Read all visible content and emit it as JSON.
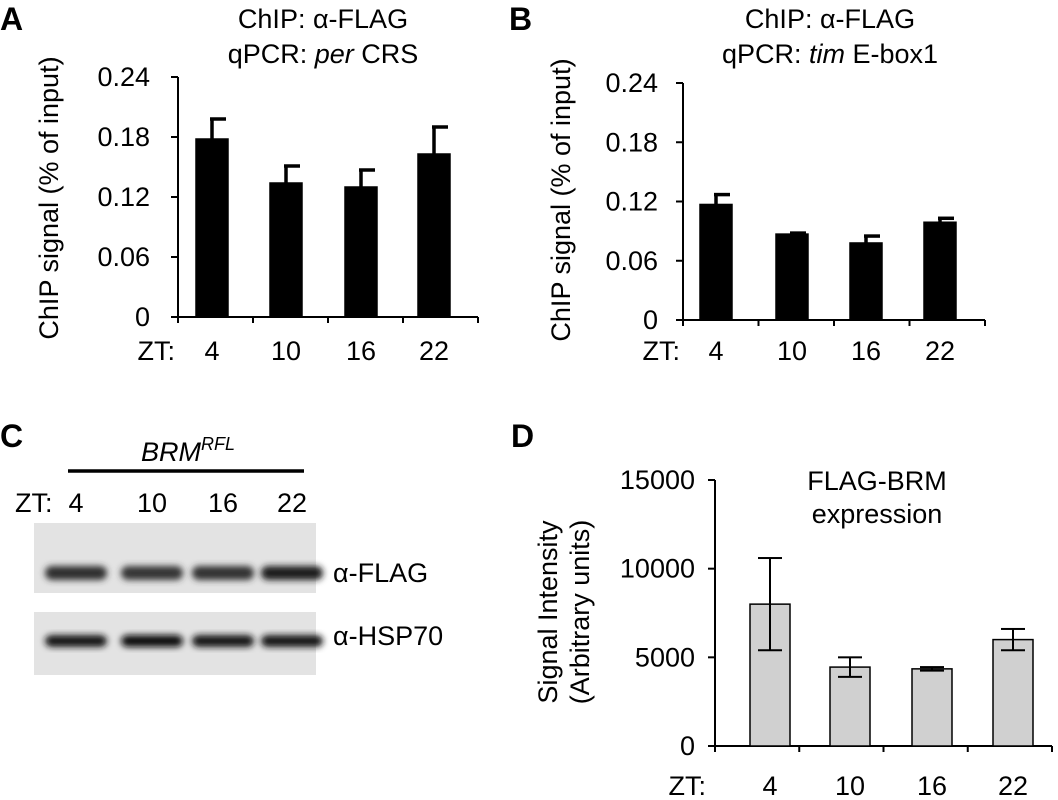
{
  "panels": [
    {
      "letter": "A",
      "title_line1": "ChIP: α-FLAG",
      "title_line2_prefix": "qPCR: ",
      "title_line2_italic": "per",
      "title_line2_suffix": " CRS"
    },
    {
      "letter": "B",
      "title_line1": "ChIP: α-FLAG",
      "title_line2_prefix": "qPCR: ",
      "title_line2_italic": "tim",
      "title_line2_suffix": " E-box1"
    },
    {
      "letter": "C",
      "genotype_base": "BRM",
      "genotype_sup": "RFL",
      "zt_prefix": "ZT:",
      "lanes": [
        "4",
        "10",
        "16",
        "22"
      ],
      "rows": [
        {
          "label": "α-FLAG",
          "intensities": [
            0.68,
            0.62,
            0.64,
            0.8
          ]
        },
        {
          "label": "α-HSP70",
          "intensities": [
            0.85,
            0.9,
            0.86,
            0.84
          ]
        }
      ]
    },
    {
      "letter": "D",
      "title_line1": "FLAG-BRM",
      "title_line2": "expression"
    }
  ],
  "chart_data": [
    {
      "type": "bar",
      "panel": "A",
      "xlabel": "ZT:",
      "ylabel": "ChIP signal (% of input)",
      "categories": [
        "4",
        "10",
        "16",
        "22"
      ],
      "values": [
        0.178,
        0.134,
        0.13,
        0.163
      ],
      "errors": [
        0.02,
        0.017,
        0.017,
        0.027
      ],
      "ylim": [
        0,
        0.24
      ],
      "yticks": [
        "0",
        "0.06",
        "0.12",
        "0.18",
        "0.24"
      ],
      "bar_color": "#000000",
      "grid": false
    },
    {
      "type": "bar",
      "panel": "B",
      "xlabel": "ZT:",
      "ylabel": "ChIP signal (% of input)",
      "categories": [
        "4",
        "10",
        "16",
        "22"
      ],
      "values": [
        0.117,
        0.087,
        0.078,
        0.099
      ],
      "errors": [
        0.01,
        0.001,
        0.007,
        0.004
      ],
      "ylim": [
        0,
        0.24
      ],
      "yticks": [
        "0",
        "0.06",
        "0.12",
        "0.18",
        "0.24"
      ],
      "bar_color": "#000000",
      "grid": false
    },
    {
      "type": "bar",
      "panel": "D",
      "xlabel": "ZT:",
      "ylabel_line1": "Signal Intensity",
      "ylabel_line2": "(Arbitrary units)",
      "categories": [
        "4",
        "10",
        "16",
        "22"
      ],
      "values": [
        8000,
        4450,
        4350,
        6000
      ],
      "errors": [
        2600,
        550,
        100,
        600
      ],
      "ylim": [
        0,
        15000
      ],
      "yticks": [
        "0",
        "5000",
        "10000",
        "15000"
      ],
      "bar_color": "#d0d0d0",
      "grid": false
    }
  ]
}
